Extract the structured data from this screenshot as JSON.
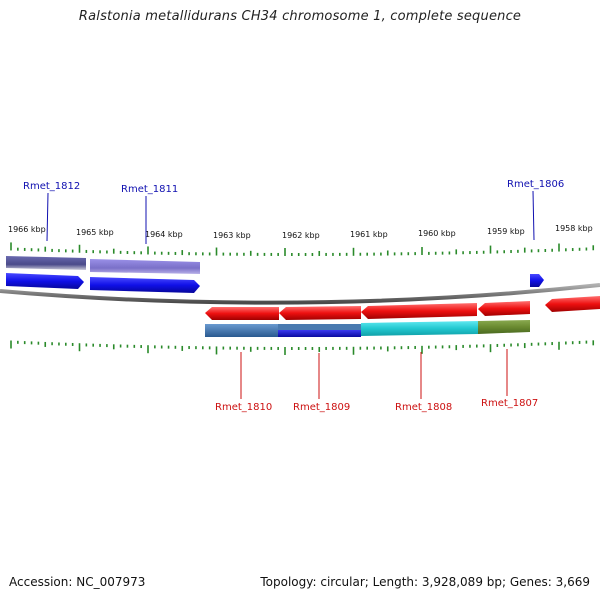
{
  "title": "Ralstonia metallidurans CH34 chromosome 1, complete sequence",
  "footer": {
    "accession": "Accession: NC_007973",
    "summary": "Topology: circular; Length: 3,928,089 bp; Genes: 3,669"
  },
  "ruler": {
    "labels": [
      "1966 kbp",
      "1965 kbp",
      "1964 kbp",
      "1963 kbp",
      "1962 kbp",
      "1961 kbp",
      "1960 kbp",
      "1959 kbp",
      "1958 kbp"
    ]
  },
  "colors": {
    "forward_gene": "#1010e8",
    "reverse_gene": "#ee1010",
    "backbone": "#7a7a7a",
    "tick": "#2a8a2a",
    "forward_label": "#1010b0",
    "reverse_label": "#cc1010",
    "cds_dark_purple": "#4a4a8a",
    "cds_light_purple": "#8a80d8",
    "cds_steel_blue": "#4a7ab0",
    "cds_blue": "#1a1ad0",
    "cds_cyan": "#22c8d0",
    "cds_olive": "#6a8a30"
  },
  "genes": {
    "forward": [
      {
        "label": "Rmet_1812"
      },
      {
        "label": "Rmet_1811"
      },
      {
        "label": "Rmet_1806"
      }
    ],
    "reverse": [
      {
        "label": "Rmet_1810"
      },
      {
        "label": "Rmet_1809"
      },
      {
        "label": "Rmet_1808"
      },
      {
        "label": "Rmet_1807"
      }
    ]
  }
}
